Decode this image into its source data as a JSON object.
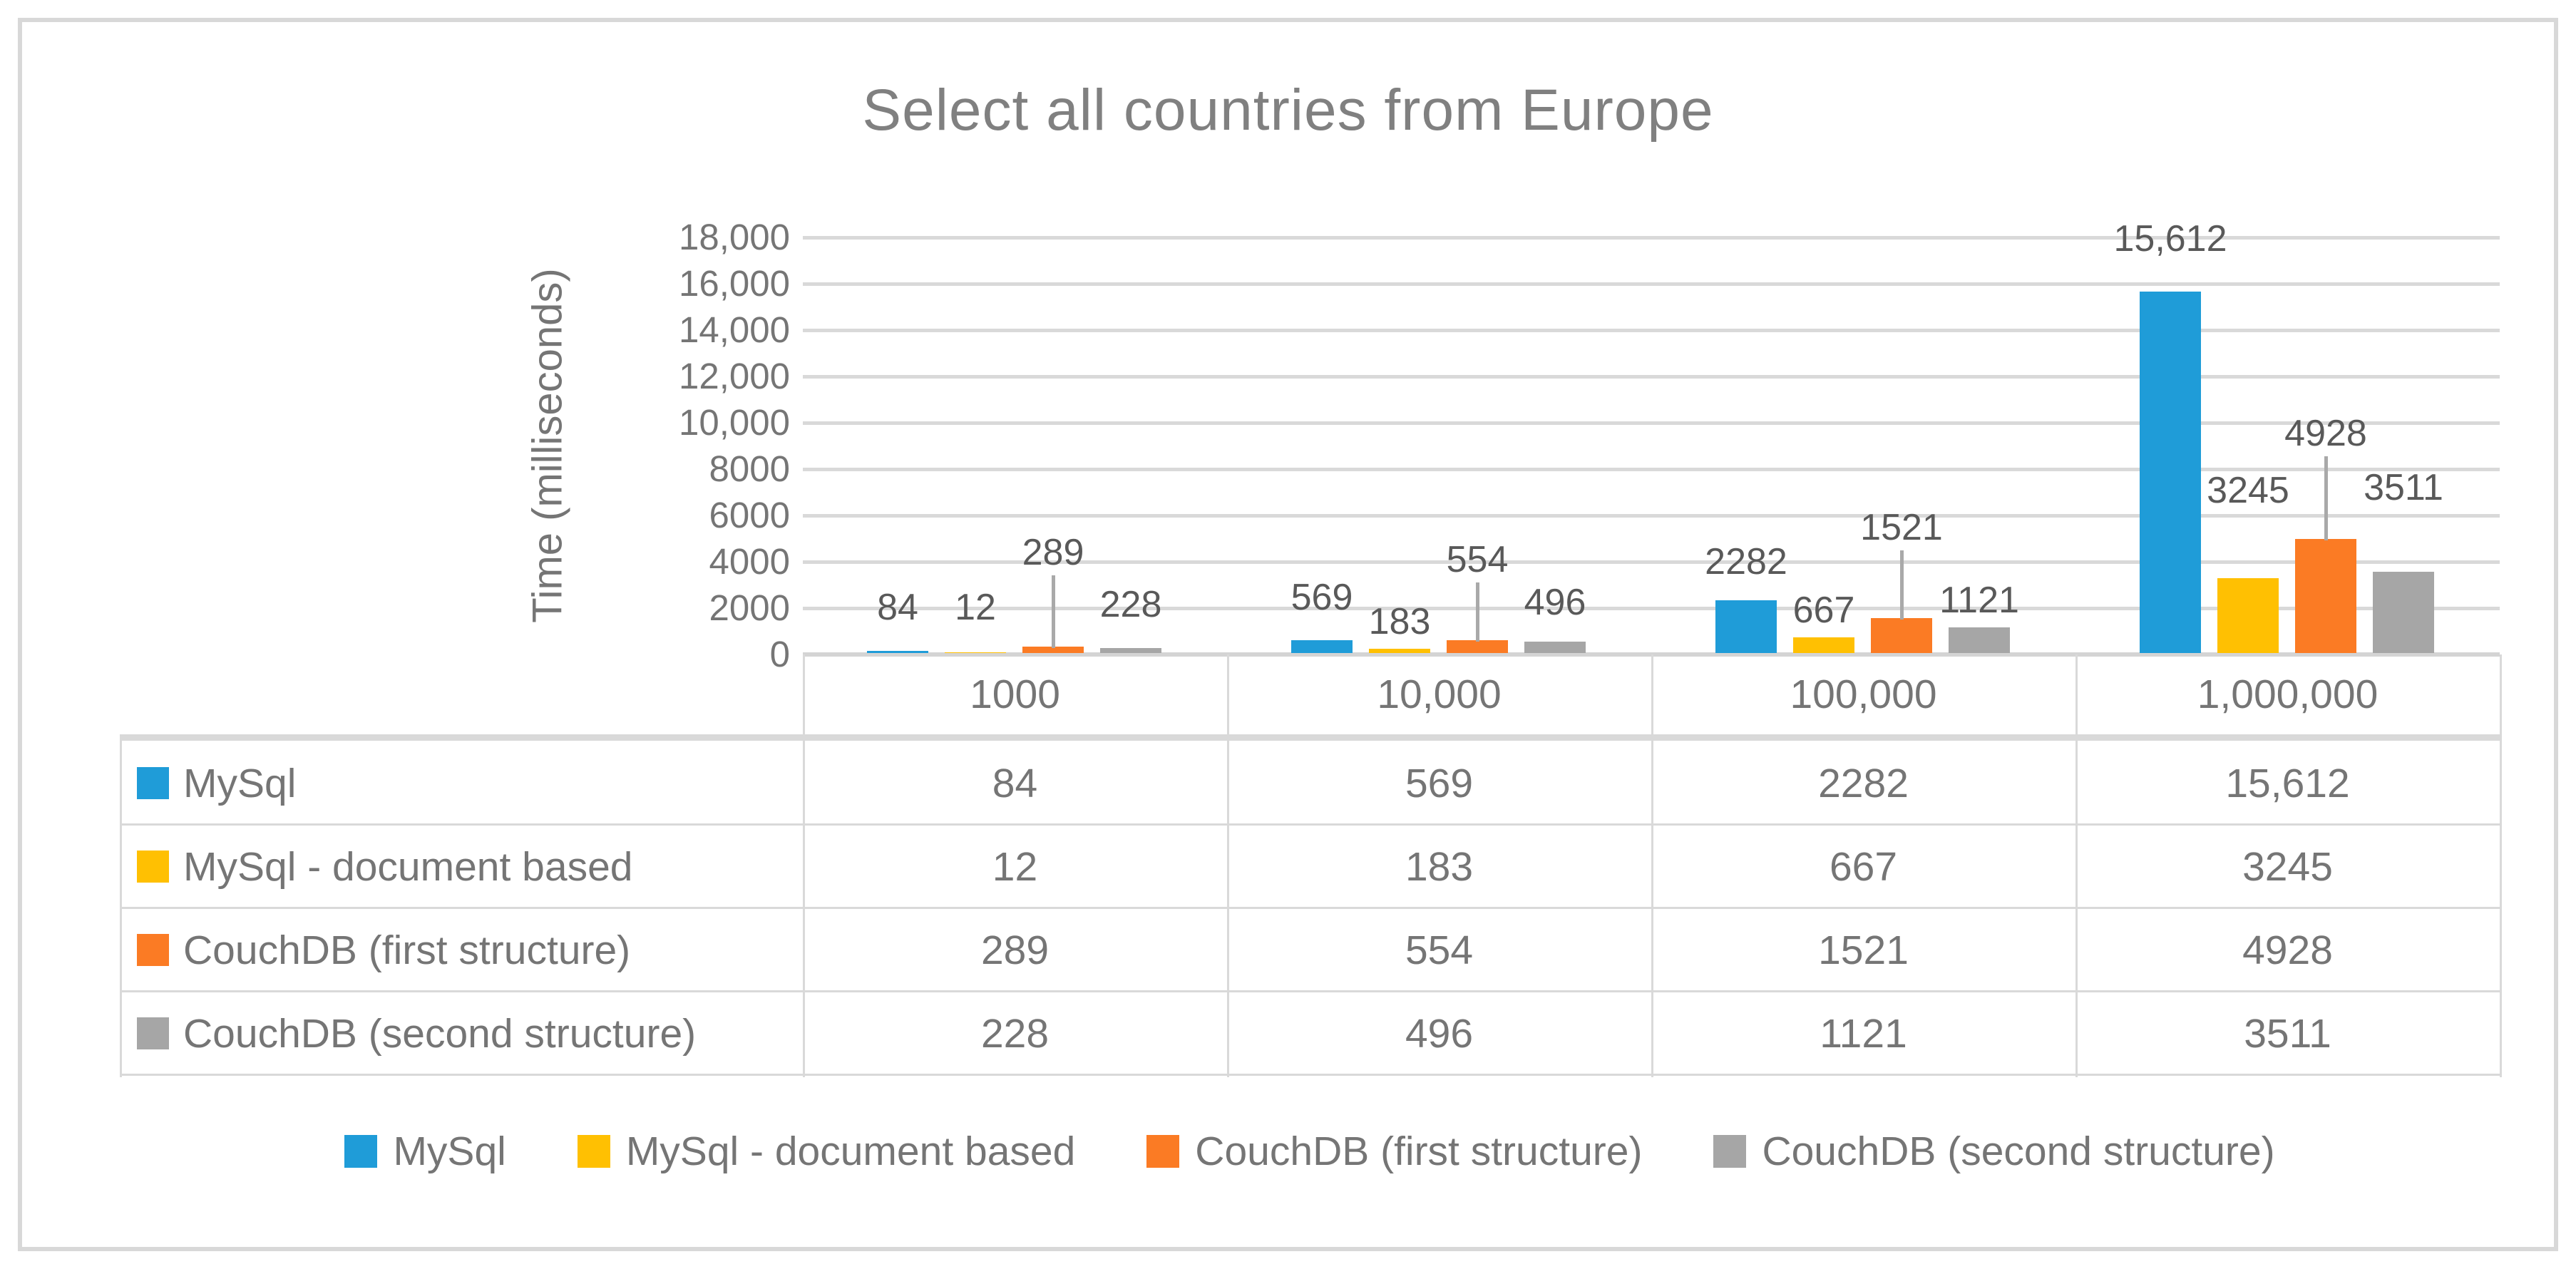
{
  "title": "Select all countries from Europe",
  "chart_data": {
    "type": "bar",
    "title": "Select all countries from Europe",
    "ylabel": "Time (milliseconds)",
    "xlabel": "",
    "ylim": [
      0,
      18000
    ],
    "ytick_step": 2000,
    "ytick_labels": [
      "0",
      "2000",
      "4000",
      "6000",
      "8000",
      "10,000",
      "12,000",
      "14,000",
      "16,000",
      "18,000"
    ],
    "grid": true,
    "legend_position": "bottom",
    "has_data_table": true,
    "categories": [
      "1000",
      "10,000",
      "100,000",
      "1,000,000"
    ],
    "series": [
      {
        "name": "MySql",
        "color": "#1f9cd8",
        "values": [
          84,
          569,
          2282,
          15612
        ],
        "labels": [
          "84",
          "569",
          "2282",
          "15,612"
        ]
      },
      {
        "name": "MySql - document based",
        "color": "#ffc002",
        "values": [
          12,
          183,
          667,
          3245
        ],
        "labels": [
          "12",
          "183",
          "667",
          "3245"
        ]
      },
      {
        "name": "CouchDB (first structure)",
        "color": "#fb7b24",
        "values": [
          289,
          554,
          1521,
          4928
        ],
        "labels": [
          "289",
          "554",
          "1521",
          "4928"
        ]
      },
      {
        "name": "CouchDB (second structure)",
        "color": "#a6a6a6",
        "values": [
          228,
          496,
          1121,
          3511
        ],
        "labels": [
          "228",
          "496",
          "1121",
          "3511"
        ]
      }
    ]
  },
  "colors": {
    "gridline": "#d9d9d9",
    "border": "#d8d8d8",
    "text": "#757575",
    "data_label_text": "#595959",
    "title_text": "#808080"
  }
}
